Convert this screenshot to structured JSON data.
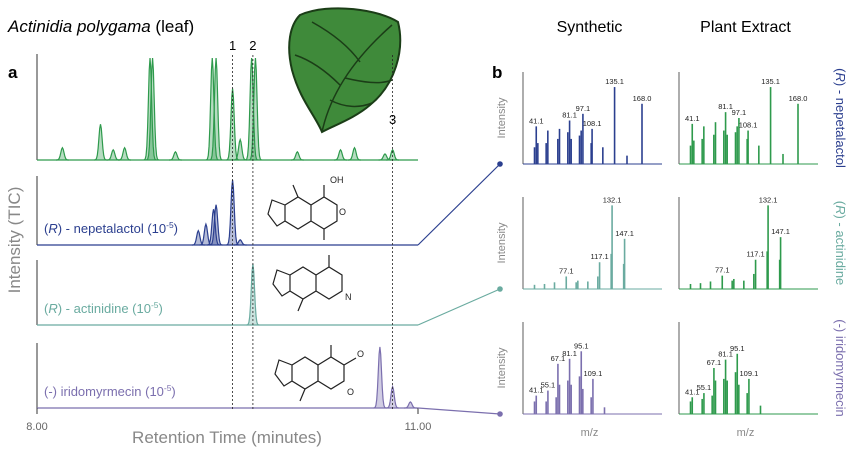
{
  "panel_a": {
    "letter": "a",
    "title": {
      "species": "Actinidia polygama",
      "suffix": " (leaf)"
    },
    "y_label": "Intensity (TIC)",
    "x_label": "Retention Time (minutes)",
    "xlim": [
      8,
      11
    ],
    "xticks": [
      {
        "value": 8,
        "label": "8.00"
      },
      {
        "value": 11,
        "label": "11.00"
      }
    ],
    "markers": [
      {
        "label": "1",
        "rt": 9.54
      },
      {
        "label": "2",
        "rt": 9.7
      },
      {
        "label": "3",
        "rt": 10.8
      }
    ],
    "traces": [
      {
        "color": "#2e9a4c",
        "rt": [
          8.2,
          8.5,
          8.6,
          8.69,
          8.89,
          8.91,
          9.09,
          9.38,
          9.41,
          9.54,
          9.6,
          9.69,
          9.72,
          10.05,
          10.39,
          10.5,
          10.74,
          10.8
        ],
        "height": [
          12,
          35,
          10,
          12,
          100,
          100,
          8,
          100,
          100,
          70,
          20,
          100,
          100,
          8,
          10,
          12,
          6,
          10
        ]
      },
      {
        "color": "#2b3f8f",
        "parts": [
          {
            "text": "(",
            "style": "normal"
          },
          {
            "text": "R",
            "style": "italic"
          },
          {
            "text": ") - nepetalactol (10",
            "style": "normal"
          },
          {
            "text": "-5",
            "style": "sup"
          },
          {
            "text": ")",
            "style": "normal"
          }
        ],
        "rt": [
          9.27,
          9.33,
          9.39,
          9.41,
          9.54,
          9.6
        ],
        "height": [
          22,
          32,
          55,
          62,
          100,
          8
        ]
      },
      {
        "color": "#6aaba0",
        "parts": [
          {
            "text": "(",
            "style": "normal"
          },
          {
            "text": "R",
            "style": "italic"
          },
          {
            "text": ") - actinidine (10",
            "style": "normal"
          },
          {
            "text": "-5",
            "style": "sup"
          },
          {
            "text": ")",
            "style": "normal"
          }
        ],
        "rt": [
          9.7
        ],
        "height": [
          100
        ]
      },
      {
        "color": "#7b6fae",
        "parts": [
          {
            "text": "(-) iridomyrmecin (10",
            "style": "normal"
          },
          {
            "text": "-5",
            "style": "sup"
          },
          {
            "text": ")",
            "style": "normal"
          }
        ],
        "rt": [
          10.7,
          10.8,
          10.94
        ],
        "height": [
          100,
          35,
          10
        ]
      }
    ]
  },
  "panel_b": {
    "letter": "b",
    "columns": [
      "Synthetic",
      "Plant Extract"
    ],
    "x_label": "m/z",
    "y_label": "Intensity",
    "xlim": [
      30,
      180
    ],
    "ylim": [
      0,
      110
    ],
    "rows": [
      {
        "color": "#2b3f8f",
        "parts": [
          {
            "text": "(",
            "style": "normal"
          },
          {
            "text": "R",
            "style": "italic"
          },
          {
            "text": ") - nepetalactol",
            "style": "normal"
          }
        ],
        "spectra": [
          {
            "color": "#2b3f8f",
            "mz": [
              39,
              41.1,
              43,
              53,
              55,
              67,
              69,
              79,
              81.1,
              83,
              93,
              95,
              97.1,
              107,
              108.1,
              121,
              135.1,
              150,
              168
            ],
            "intensity": [
              20,
              45,
              25,
              25,
              40,
              30,
              42,
              38,
              52,
              30,
              34,
              40,
              60,
              25,
              42,
              20,
              92,
              10,
              72
            ],
            "labels": [
              null,
              "41.1",
              null,
              null,
              null,
              null,
              null,
              null,
              "81.1",
              null,
              null,
              null,
              "97.1",
              null,
              "108.1",
              null,
              "135.1",
              null,
              "168.0"
            ]
          },
          {
            "color": "#2e9a4c",
            "mz": [
              39,
              41.1,
              43,
              53,
              55,
              67,
              69,
              79,
              81.1,
              83,
              93,
              95,
              97.1,
              107,
              108.1,
              121,
              135.1,
              150,
              168
            ],
            "intensity": [
              22,
              48,
              28,
              30,
              45,
              35,
              50,
              40,
              62,
              35,
              38,
              45,
              55,
              30,
              40,
              22,
              92,
              12,
              72
            ],
            "labels": [
              null,
              "41.1",
              null,
              null,
              null,
              null,
              null,
              null,
              "81.1",
              null,
              null,
              null,
              "97.1",
              null,
              "108.1",
              null,
              "135.1",
              null,
              "168.0"
            ]
          }
        ]
      },
      {
        "color": "#6aaba0",
        "parts": [
          {
            "text": "(",
            "style": "normal"
          },
          {
            "text": "R",
            "style": "italic"
          },
          {
            "text": ") - actinidine",
            "style": "normal"
          }
        ],
        "spectra": [
          {
            "color": "#6aaba0",
            "mz": [
              39,
              51,
              63,
              77.1,
              89,
              91,
              103,
              115,
              117.1,
              131,
              132.1,
              146,
              147.1
            ],
            "intensity": [
              5,
              6,
              8,
              15,
              8,
              10,
              9,
              15,
              32,
              42,
              100,
              30,
              60
            ],
            "labels": [
              null,
              null,
              null,
              "77.1",
              null,
              null,
              null,
              null,
              "117.1",
              null,
              "132.1",
              null,
              "147.1"
            ]
          },
          {
            "color": "#2e9a4c",
            "mz": [
              39,
              51,
              63,
              77.1,
              89,
              91,
              103,
              115,
              117.1,
              131,
              132.1,
              146,
              147.1
            ],
            "intensity": [
              6,
              7,
              9,
              16,
              10,
              12,
              10,
              18,
              35,
              45,
              100,
              35,
              62
            ],
            "labels": [
              null,
              null,
              null,
              "77.1",
              null,
              null,
              null,
              null,
              "117.1",
              null,
              "132.1",
              null,
              "147.1"
            ]
          }
        ]
      },
      {
        "color": "#7b6fae",
        "parts": [
          {
            "text": "(-) iridomyrmecin",
            "style": "normal"
          }
        ],
        "spectra": [
          {
            "color": "#7b6fae",
            "mz": [
              39,
              41.1,
              53,
              55.1,
              65,
              67.1,
              69,
              79,
              81.1,
              83,
              93,
              95.1,
              97,
              107,
              109.1,
              123
            ],
            "intensity": [
              15,
              22,
              15,
              28,
              20,
              60,
              35,
              40,
              66,
              35,
              45,
              75,
              30,
              20,
              42,
              8
            ],
            "labels": [
              null,
              "41.1",
              null,
              "55.1",
              null,
              "67.1",
              null,
              null,
              "81.1",
              null,
              null,
              "95.1",
              null,
              null,
              "109.1",
              null
            ]
          },
          {
            "color": "#2e9a4c",
            "mz": [
              39,
              41.1,
              53,
              55.1,
              65,
              67.1,
              69,
              79,
              81.1,
              83,
              93,
              95.1,
              97,
              107,
              109.1,
              123
            ],
            "intensity": [
              15,
              20,
              18,
              25,
              22,
              55,
              40,
              42,
              65,
              40,
              50,
              72,
              35,
              25,
              42,
              10
            ],
            "labels": [
              null,
              "41.1",
              null,
              "55.1",
              null,
              "67.1",
              null,
              null,
              "81.1",
              null,
              null,
              "95.1",
              null,
              null,
              "109.1",
              null
            ]
          }
        ]
      }
    ]
  }
}
